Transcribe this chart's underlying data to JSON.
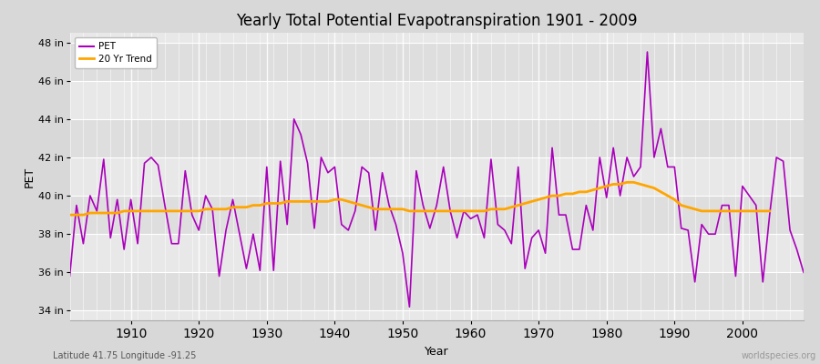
{
  "title": "Yearly Total Potential Evapotranspiration 1901 - 2009",
  "xlabel": "Year",
  "ylabel": "PET",
  "footnote_left": "Latitude 41.75 Longitude -91.25",
  "footnote_right": "worldspecies.org",
  "pet_color": "#aa00bb",
  "trend_color": "#ffa500",
  "fig_bg_color": "#d8d8d8",
  "plot_bg_color": "#e8e8e8",
  "band_color_light": "#e0e0e0",
  "band_color_dark": "#d0d0d0",
  "ylim": [
    33.5,
    48.5
  ],
  "yticks": [
    34,
    36,
    38,
    40,
    42,
    44,
    46,
    48
  ],
  "ytick_labels": [
    "34 in",
    "36 in",
    "38 in",
    "40 in",
    "42 in",
    "44 in",
    "46 in",
    "48 in"
  ],
  "years": [
    1901,
    1902,
    1903,
    1904,
    1905,
    1906,
    1907,
    1908,
    1909,
    1910,
    1911,
    1912,
    1913,
    1914,
    1915,
    1916,
    1917,
    1918,
    1919,
    1920,
    1921,
    1922,
    1923,
    1924,
    1925,
    1926,
    1927,
    1928,
    1929,
    1930,
    1931,
    1932,
    1933,
    1934,
    1935,
    1936,
    1937,
    1938,
    1939,
    1940,
    1941,
    1942,
    1943,
    1944,
    1945,
    1946,
    1947,
    1948,
    1949,
    1950,
    1951,
    1952,
    1953,
    1954,
    1955,
    1956,
    1957,
    1958,
    1959,
    1960,
    1961,
    1962,
    1963,
    1964,
    1965,
    1966,
    1967,
    1968,
    1969,
    1970,
    1971,
    1972,
    1973,
    1974,
    1975,
    1976,
    1977,
    1978,
    1979,
    1980,
    1981,
    1982,
    1983,
    1984,
    1985,
    1986,
    1987,
    1988,
    1989,
    1990,
    1991,
    1992,
    1993,
    1994,
    1995,
    1996,
    1997,
    1998,
    1999,
    2000,
    2001,
    2002,
    2003,
    2004,
    2005,
    2006,
    2007,
    2008,
    2009
  ],
  "pet_values": [
    35.8,
    39.5,
    37.5,
    40.0,
    39.2,
    41.9,
    37.8,
    39.8,
    37.2,
    39.8,
    37.5,
    41.7,
    42.0,
    41.6,
    39.5,
    37.5,
    37.5,
    41.3,
    39.0,
    38.2,
    40.0,
    39.3,
    35.8,
    38.2,
    39.8,
    38.0,
    36.2,
    38.0,
    36.1,
    41.5,
    36.1,
    41.8,
    38.5,
    44.0,
    43.2,
    41.7,
    38.3,
    42.0,
    41.2,
    41.5,
    38.5,
    38.2,
    39.2,
    41.5,
    41.2,
    38.2,
    41.2,
    39.5,
    38.5,
    37.0,
    34.2,
    41.3,
    39.5,
    38.3,
    39.5,
    41.5,
    39.2,
    37.8,
    39.2,
    38.8,
    39.0,
    37.8,
    41.9,
    38.5,
    38.2,
    37.5,
    41.5,
    36.2,
    37.8,
    38.2,
    37.0,
    42.5,
    39.0,
    39.0,
    37.2,
    37.2,
    39.5,
    38.2,
    42.0,
    39.9,
    42.5,
    40.0,
    42.0,
    41.0,
    41.5,
    47.5,
    42.0,
    43.5,
    41.5,
    41.5,
    38.3,
    38.2,
    35.5,
    38.5,
    38.0,
    38.0,
    39.5,
    39.5,
    35.8,
    40.5,
    40.0,
    39.5,
    35.5,
    39.0,
    42.0,
    41.8,
    38.2,
    37.2,
    36.0
  ],
  "trend_values": [
    39.0,
    39.0,
    39.0,
    39.1,
    39.1,
    39.1,
    39.1,
    39.1,
    39.2,
    39.2,
    39.2,
    39.2,
    39.2,
    39.2,
    39.2,
    39.2,
    39.2,
    39.2,
    39.2,
    39.2,
    39.3,
    39.3,
    39.3,
    39.3,
    39.4,
    39.4,
    39.4,
    39.5,
    39.5,
    39.6,
    39.6,
    39.6,
    39.7,
    39.7,
    39.7,
    39.7,
    39.7,
    39.7,
    39.7,
    39.8,
    39.8,
    39.7,
    39.6,
    39.5,
    39.4,
    39.3,
    39.3,
    39.3,
    39.3,
    39.3,
    39.2,
    39.2,
    39.2,
    39.2,
    39.2,
    39.2,
    39.2,
    39.2,
    39.2,
    39.2,
    39.2,
    39.2,
    39.3,
    39.3,
    39.3,
    39.4,
    39.5,
    39.6,
    39.7,
    39.8,
    39.9,
    40.0,
    40.0,
    40.1,
    40.1,
    40.2,
    40.2,
    40.3,
    40.4,
    40.5,
    40.6,
    40.6,
    40.7,
    40.7,
    40.6,
    40.5,
    40.4,
    40.2,
    40.0,
    39.8,
    39.5,
    39.4,
    39.3,
    39.2,
    39.2,
    39.2,
    39.2,
    39.2,
    39.2,
    39.2,
    39.2,
    39.2,
    39.2,
    39.2,
    null,
    null,
    null,
    null,
    null
  ]
}
